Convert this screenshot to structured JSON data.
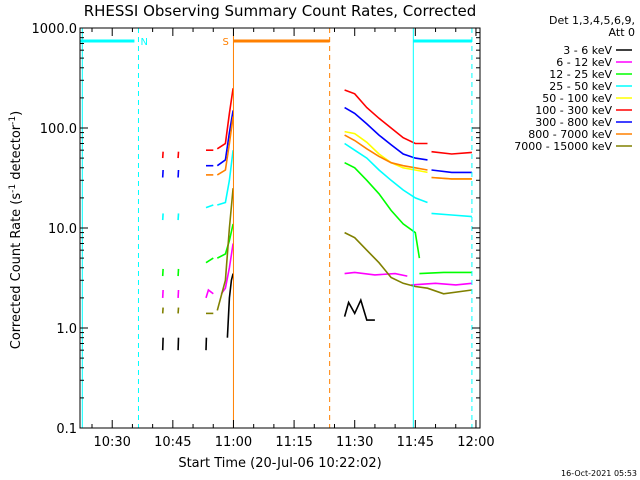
{
  "chart_data": {
    "type": "line",
    "title": "RHESSI Observing Summary Count Rates, Corrected",
    "xlabel": "Start Time (20-Jul-06 10:22:02)",
    "ylabel_main": "Corrected Count Rate (s",
    "ylabel_sup1": "-1",
    "ylabel_mid": " detector",
    "ylabel_sup2": "-1",
    "ylabel_end": ")",
    "y_scale": "log",
    "ylim": [
      0.1,
      1000.0
    ],
    "xlim_minutes": [
      22.03,
      121.0
    ],
    "x_ticks": [
      {
        "label": "10:30",
        "min": 30
      },
      {
        "label": "10:45",
        "min": 45
      },
      {
        "label": "11:00",
        "min": 60
      },
      {
        "label": "11:15",
        "min": 75
      },
      {
        "label": "11:30",
        "min": 90
      },
      {
        "label": "11:45",
        "min": 105
      },
      {
        "label": "12:00",
        "min": 120
      }
    ],
    "y_ticks": [
      {
        "label": "0.1",
        "v": 0.1
      },
      {
        "label": "1.0",
        "v": 1.0
      },
      {
        "label": "10.0",
        "v": 10.0
      },
      {
        "label": "100.0",
        "v": 100.0
      },
      {
        "label": "1000.0",
        "v": 1000.0
      }
    ],
    "legend_header": [
      "Det 1,3,4,5,6,9,",
      "Att 0"
    ],
    "timestamp": "16-Oct-2021 05:53",
    "flag_bars": [
      {
        "label": "N",
        "color": "#00ffff",
        "segments": [
          [
            22.03,
            35.5
          ],
          [
            104.5,
            119.0
          ]
        ]
      },
      {
        "label": "S",
        "color": "#ff8000",
        "segments": [
          [
            60.0,
            83.8
          ]
        ]
      }
    ],
    "markers": [
      {
        "min": 22.6,
        "color": "#00ffff",
        "style": "solid"
      },
      {
        "min": 36.5,
        "color": "#00ffff",
        "style": "dashed"
      },
      {
        "min": 60.0,
        "color": "#ff8000",
        "style": "solid"
      },
      {
        "min": 83.8,
        "color": "#ff8000",
        "style": "dashed"
      },
      {
        "min": 104.5,
        "color": "#00ffff",
        "style": "solid"
      },
      {
        "min": 119.0,
        "color": "#00ffff",
        "style": "dashed"
      }
    ],
    "series": [
      {
        "name": "3 - 6 keV",
        "color": "#000000",
        "segments": [
          [
            [
              42.5,
              0.6
            ],
            [
              42.6,
              0.8
            ]
          ],
          [
            [
              46.3,
              0.6
            ],
            [
              46.4,
              0.8
            ]
          ],
          [
            [
              53.2,
              0.6
            ],
            [
              53.3,
              0.8
            ]
          ],
          [
            [
              58.5,
              0.8
            ],
            [
              59.0,
              2.0
            ],
            [
              59.5,
              3.0
            ],
            [
              59.9,
              3.5
            ]
          ],
          [
            [
              87.5,
              1.3
            ],
            [
              88.5,
              1.8
            ],
            [
              90,
              1.4
            ],
            [
              91.5,
              1.9
            ],
            [
              93,
              1.2
            ],
            [
              95,
              1.2
            ]
          ]
        ]
      },
      {
        "name": "6 - 12 keV",
        "color": "#ff00ff",
        "segments": [
          [
            [
              42.5,
              2.0
            ],
            [
              42.6,
              2.4
            ]
          ],
          [
            [
              46.3,
              2.0
            ],
            [
              46.4,
              2.4
            ]
          ],
          [
            [
              53.2,
              2.0
            ],
            [
              53.8,
              2.4
            ],
            [
              55,
              2.2
            ]
          ],
          [
            [
              57,
              2.2
            ],
            [
              58,
              2.5
            ],
            [
              59,
              4.0
            ],
            [
              59.9,
              7.0
            ]
          ],
          [
            [
              87.5,
              3.5
            ],
            [
              90,
              3.6
            ],
            [
              95,
              3.4
            ],
            [
              100,
              3.5
            ],
            [
              103,
              3.3
            ]
          ],
          [
            [
              104,
              2.7
            ],
            [
              110,
              2.8
            ],
            [
              115,
              2.7
            ],
            [
              119,
              2.8
            ]
          ]
        ]
      },
      {
        "name": "12 - 25 keV",
        "color": "#00ff00",
        "segments": [
          [
            [
              42.5,
              3.3
            ],
            [
              42.6,
              3.9
            ]
          ],
          [
            [
              46.3,
              3.3
            ],
            [
              46.4,
              3.9
            ]
          ],
          [
            [
              53.2,
              4.5
            ],
            [
              55,
              5.0
            ]
          ],
          [
            [
              56,
              5.0
            ],
            [
              58,
              5.5
            ],
            [
              59,
              7.5
            ],
            [
              59.9,
              11.0
            ]
          ],
          [
            [
              87.5,
              45
            ],
            [
              90,
              40
            ],
            [
              93,
              30
            ],
            [
              96,
              22
            ],
            [
              99,
              15
            ],
            [
              102,
              11
            ],
            [
              105,
              9
            ],
            [
              106,
              5
            ]
          ],
          [
            [
              106,
              3.5
            ],
            [
              112,
              3.6
            ],
            [
              119,
              3.6
            ]
          ]
        ]
      },
      {
        "name": "25 - 50 keV",
        "color": "#00ffff",
        "segments": [
          [
            [
              42.5,
              12
            ],
            [
              42.6,
              14
            ]
          ],
          [
            [
              46.3,
              12
            ],
            [
              46.4,
              14
            ]
          ],
          [
            [
              53.2,
              16
            ],
            [
              55,
              17
            ]
          ],
          [
            [
              56,
              17
            ],
            [
              58,
              18
            ],
            [
              59,
              30
            ],
            [
              59.9,
              60
            ]
          ],
          [
            [
              87.5,
              70
            ],
            [
              90,
              60
            ],
            [
              93,
              50
            ],
            [
              96,
              38
            ],
            [
              99,
              30
            ],
            [
              102,
              24
            ],
            [
              105,
              20
            ],
            [
              108,
              18
            ]
          ],
          [
            [
              109,
              14
            ],
            [
              114,
              13.5
            ],
            [
              119,
              13
            ]
          ]
        ]
      },
      {
        "name": "50 - 100 keV",
        "color": "#ffff00",
        "segments": [
          [
            [
              87.5,
              92
            ],
            [
              90,
              88
            ],
            [
              93,
              72
            ],
            [
              96,
              55
            ],
            [
              99,
              45
            ],
            [
              102,
              40
            ],
            [
              105,
              38
            ],
            [
              108,
              36
            ]
          ],
          [
            [
              109,
              32
            ],
            [
              114,
              31
            ],
            [
              119,
              31
            ]
          ]
        ]
      },
      {
        "name": "100 - 300 keV",
        "color": "#ff0000",
        "segments": [
          [
            [
              42.5,
              50
            ],
            [
              42.6,
              58
            ]
          ],
          [
            [
              46.3,
              50
            ],
            [
              46.4,
              58
            ]
          ],
          [
            [
              53.2,
              60
            ],
            [
              55,
              60
            ]
          ],
          [
            [
              56,
              62
            ],
            [
              58,
              70
            ],
            [
              59,
              140
            ],
            [
              59.9,
              250
            ]
          ],
          [
            [
              87.5,
              240
            ],
            [
              90,
              220
            ],
            [
              93,
              160
            ],
            [
              96,
              125
            ],
            [
              99,
              100
            ],
            [
              102,
              80
            ],
            [
              105,
              70
            ],
            [
              108,
              70
            ]
          ],
          [
            [
              109,
              58
            ],
            [
              114,
              55
            ],
            [
              119,
              57
            ]
          ]
        ]
      },
      {
        "name": "300 - 800 keV",
        "color": "#0000ff",
        "segments": [
          [
            [
              42.5,
              32
            ],
            [
              42.6,
              38
            ]
          ],
          [
            [
              46.3,
              32
            ],
            [
              46.4,
              38
            ]
          ],
          [
            [
              53.2,
              42
            ],
            [
              55,
              42
            ]
          ],
          [
            [
              56,
              42
            ],
            [
              58,
              48
            ],
            [
              59,
              90
            ],
            [
              59.9,
              150
            ]
          ],
          [
            [
              87.5,
              160
            ],
            [
              90,
              140
            ],
            [
              93,
              110
            ],
            [
              96,
              85
            ],
            [
              99,
              68
            ],
            [
              102,
              55
            ],
            [
              105,
              50
            ],
            [
              108,
              48
            ]
          ],
          [
            [
              109,
              38
            ],
            [
              114,
              36
            ],
            [
              119,
              36
            ]
          ]
        ]
      },
      {
        "name": "800 - 7000 keV",
        "color": "#ff8000",
        "segments": [
          [
            [
              53.2,
              34
            ],
            [
              55,
              34
            ]
          ],
          [
            [
              56,
              34
            ],
            [
              58,
              38
            ],
            [
              59,
              70
            ],
            [
              59.9,
              130
            ]
          ],
          [
            [
              87.5,
              85
            ],
            [
              90,
              75
            ],
            [
              93,
              62
            ],
            [
              96,
              52
            ],
            [
              99,
              45
            ],
            [
              102,
              42
            ],
            [
              105,
              40
            ],
            [
              108,
              38
            ]
          ],
          [
            [
              109,
              32
            ],
            [
              114,
              31
            ],
            [
              119,
              31
            ]
          ]
        ]
      },
      {
        "name": "7000 - 15000 keV",
        "color": "#808000",
        "segments": [
          [
            [
              42.5,
              1.4
            ],
            [
              42.6,
              1.6
            ]
          ],
          [
            [
              46.3,
              1.4
            ],
            [
              46.4,
              1.6
            ]
          ],
          [
            [
              53.2,
              1.4
            ],
            [
              55,
              1.4
            ]
          ],
          [
            [
              56,
              1.5
            ],
            [
              58,
              3
            ],
            [
              59,
              10
            ],
            [
              59.9,
              25
            ]
          ],
          [
            [
              87.5,
              9
            ],
            [
              90,
              8
            ],
            [
              93,
              6
            ],
            [
              96,
              4.5
            ],
            [
              99,
              3.2
            ],
            [
              102,
              2.8
            ],
            [
              105,
              2.6
            ],
            [
              108,
              2.5
            ],
            [
              112,
              2.2
            ],
            [
              119,
              2.4
            ]
          ]
        ]
      }
    ]
  }
}
